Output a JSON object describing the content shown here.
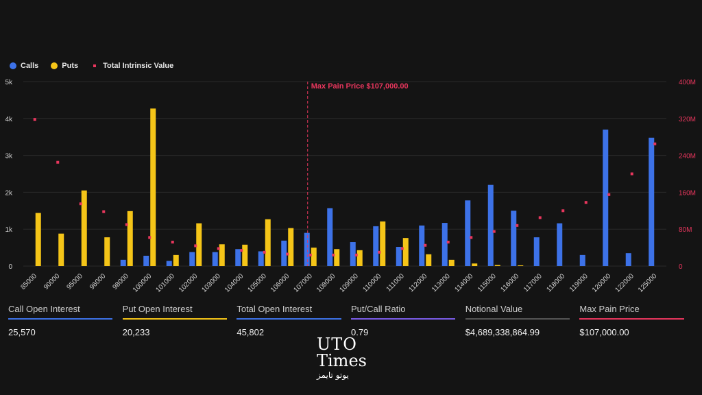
{
  "legend": {
    "calls": "Calls",
    "puts": "Puts",
    "intrinsic": "Total Intrinsic Value"
  },
  "colors": {
    "calls": "#3d72e8",
    "puts": "#f5c518",
    "intrinsic": "#e8365d",
    "background": "#141414",
    "call_oi_line": "#3d72e8",
    "put_oi_line": "#f5c518",
    "total_oi_line": "#3d72e8",
    "ratio_line": "#7b5ce8",
    "notional_line": "#555555",
    "maxpain_line": "#e8365d"
  },
  "chart_data": {
    "type": "bar",
    "categories": [
      "85000",
      "90000",
      "95000",
      "96000",
      "98000",
      "100000",
      "101000",
      "102000",
      "103000",
      "104000",
      "105000",
      "106000",
      "107000",
      "108000",
      "109000",
      "110000",
      "111000",
      "112000",
      "113000",
      "114000",
      "115000",
      "116000",
      "117000",
      "118000",
      "119000",
      "120000",
      "122000",
      "125000"
    ],
    "series": [
      {
        "name": "Calls",
        "axis": "left",
        "values": [
          0,
          0,
          0,
          0,
          170,
          280,
          140,
          380,
          380,
          460,
          400,
          690,
          900,
          1570,
          650,
          1080,
          520,
          1100,
          1170,
          1780,
          2200,
          1500,
          780,
          1160,
          300,
          3700,
          350,
          3480
        ]
      },
      {
        "name": "Puts",
        "axis": "left",
        "values": [
          1440,
          880,
          2050,
          780,
          1490,
          4270,
          300,
          1160,
          590,
          580,
          1270,
          1030,
          500,
          460,
          430,
          1210,
          760,
          320,
          170,
          70,
          30,
          20,
          0,
          0,
          0,
          0,
          0,
          0
        ]
      },
      {
        "name": "Total Intrinsic Value",
        "type": "scatter",
        "axis": "right",
        "values": [
          318,
          225,
          135,
          118,
          90,
          62,
          52,
          44,
          38,
          34,
          30,
          26,
          24,
          24,
          24,
          30,
          38,
          45,
          52,
          62,
          75,
          88,
          105,
          120,
          138,
          155,
          200,
          265
        ]
      }
    ],
    "y_left": {
      "ticks": [
        "0",
        "1k",
        "2k",
        "3k",
        "4k",
        "5k"
      ],
      "lim": [
        0,
        5000
      ]
    },
    "y_right": {
      "ticks": [
        "0",
        "80M",
        "160M",
        "240M",
        "320M",
        "400M"
      ],
      "lim": [
        0,
        400
      ],
      "unit": "M"
    },
    "max_pain": {
      "label": "Max Pain Price $107,000.00",
      "category": "107000"
    },
    "legend_position": "top-left",
    "grid": "horizontal"
  },
  "stats": [
    {
      "label": "Call Open Interest",
      "value": "25,570"
    },
    {
      "label": "Put Open Interest",
      "value": "20,233"
    },
    {
      "label": "Total Open Interest",
      "value": "45,802"
    },
    {
      "label": "Put/Call Ratio",
      "value": "0.79"
    },
    {
      "label": "Notional Value",
      "value": "$4,689,338,864.99"
    },
    {
      "label": "Max Pain Price",
      "value": "$107,000.00"
    }
  ],
  "logo": {
    "line1": "UTO",
    "line2": "Times",
    "line3": "یوتو تایمز"
  }
}
